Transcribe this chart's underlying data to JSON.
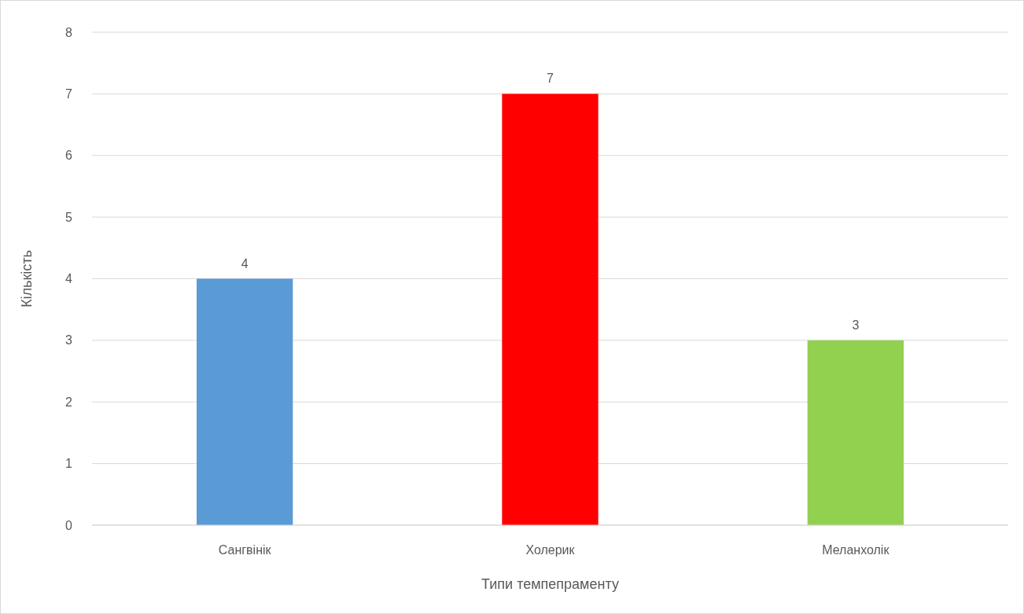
{
  "chart_data": {
    "type": "bar",
    "xlabel": "Типи темпепраменту",
    "ylabel": "Кількість",
    "categories": [
      "Сангвінік",
      "Холерик",
      "Меланхолік"
    ],
    "values": [
      4,
      7,
      3
    ],
    "colors": [
      "#5b9bd5",
      "#ff0000",
      "#92d050"
    ],
    "ylim": [
      0,
      8
    ],
    "yticks": [
      0,
      1,
      2,
      3,
      4,
      5,
      6,
      7,
      8
    ],
    "grid": "y",
    "data_labels": true
  }
}
